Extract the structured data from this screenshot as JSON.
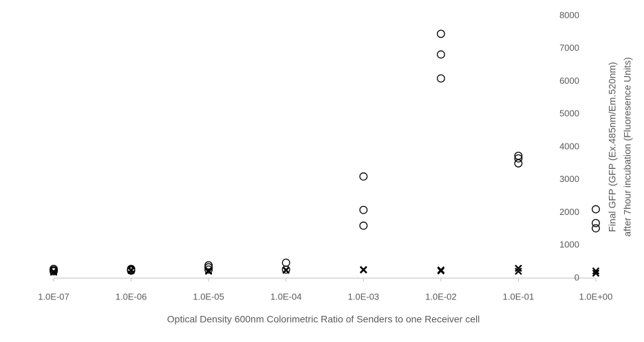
{
  "chart_data": {
    "type": "scatter",
    "xlabel": "Optical Density 600nm Colorimetric Ratio of Senders to one Receiver cell",
    "ylabel": [
      "Final GFP (GFP (Ex.485nm/Em.520nm)",
      "after 7hour incubation (Fluoresence Units)"
    ],
    "xscale": "log",
    "xlim": [
      1e-07,
      1
    ],
    "xticks": [
      {
        "value": 1e-07,
        "label": "1.0E-07"
      },
      {
        "value": 1e-06,
        "label": "1.0E-06"
      },
      {
        "value": 1e-05,
        "label": "1.0E-05"
      },
      {
        "value": 0.0001,
        "label": "1.0E-04"
      },
      {
        "value": 0.001,
        "label": "1.0E-03"
      },
      {
        "value": 0.01,
        "label": "1.0E-02"
      },
      {
        "value": 0.1,
        "label": "1.0E-01"
      },
      {
        "value": 1,
        "label": "1.0E+00"
      }
    ],
    "ylim": [
      0,
      8000
    ],
    "yticks": [
      0,
      1000,
      2000,
      3000,
      4000,
      5000,
      6000,
      7000,
      8000
    ],
    "y_axis_side": "right",
    "grid": false,
    "series": [
      {
        "marker": "circle",
        "color": "#000000",
        "x": [
          1e-07,
          1e-07,
          1e-07,
          1e-06,
          1e-06,
          1e-06,
          1e-05,
          1e-05,
          1e-05,
          0.0001,
          0.0001,
          0.001,
          0.001,
          0.001,
          0.01,
          0.01,
          0.01,
          0.1,
          0.1,
          0.1,
          1,
          1,
          1
        ],
        "values": [
          280,
          240,
          210,
          280,
          250,
          230,
          390,
          330,
          260,
          470,
          260,
          3100,
          2080,
          1600,
          7450,
          6820,
          6090,
          3730,
          3650,
          3500,
          2100,
          1680,
          1520
        ]
      },
      {
        "marker": "cross",
        "color": "#000000",
        "x": [
          1e-07,
          1e-07,
          1e-06,
          1e-06,
          1e-05,
          1e-05,
          0.0001,
          0.0001,
          0.001,
          0.001,
          0.01,
          0.01,
          0.1,
          0.1,
          1,
          1
        ],
        "values": [
          200,
          180,
          250,
          230,
          230,
          210,
          250,
          240,
          260,
          250,
          250,
          220,
          300,
          210,
          220,
          150
        ]
      }
    ]
  }
}
